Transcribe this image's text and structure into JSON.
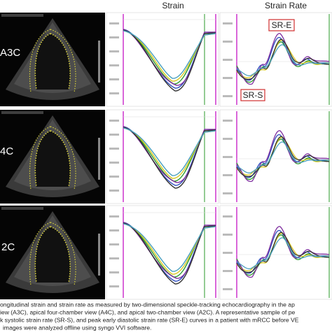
{
  "header": {
    "strain": "Strain",
    "strain_rate": "Strain Rate"
  },
  "rows": [
    {
      "label": "A3C"
    },
    {
      "label": "4C"
    },
    {
      "label": "2C"
    }
  ],
  "annotations": {
    "sr_e": "SR-E",
    "sr_s": "SR-S"
  },
  "caption": [
    "ongitudinal strain and strain rate as measured by two-dimensional speckle-tracking echocardiography in the ap",
    "iew (A3C), apical four-chamber view (A4C), and apical two-chamber view (A2C). A representative sample of pe",
    "k systolic strain rate (SR-S), and peak early diastolic strain rate (SR-E) curves in a patient with mRCC before VE",
    "images were analyzed offline using syngo VVI software."
  ]
}
